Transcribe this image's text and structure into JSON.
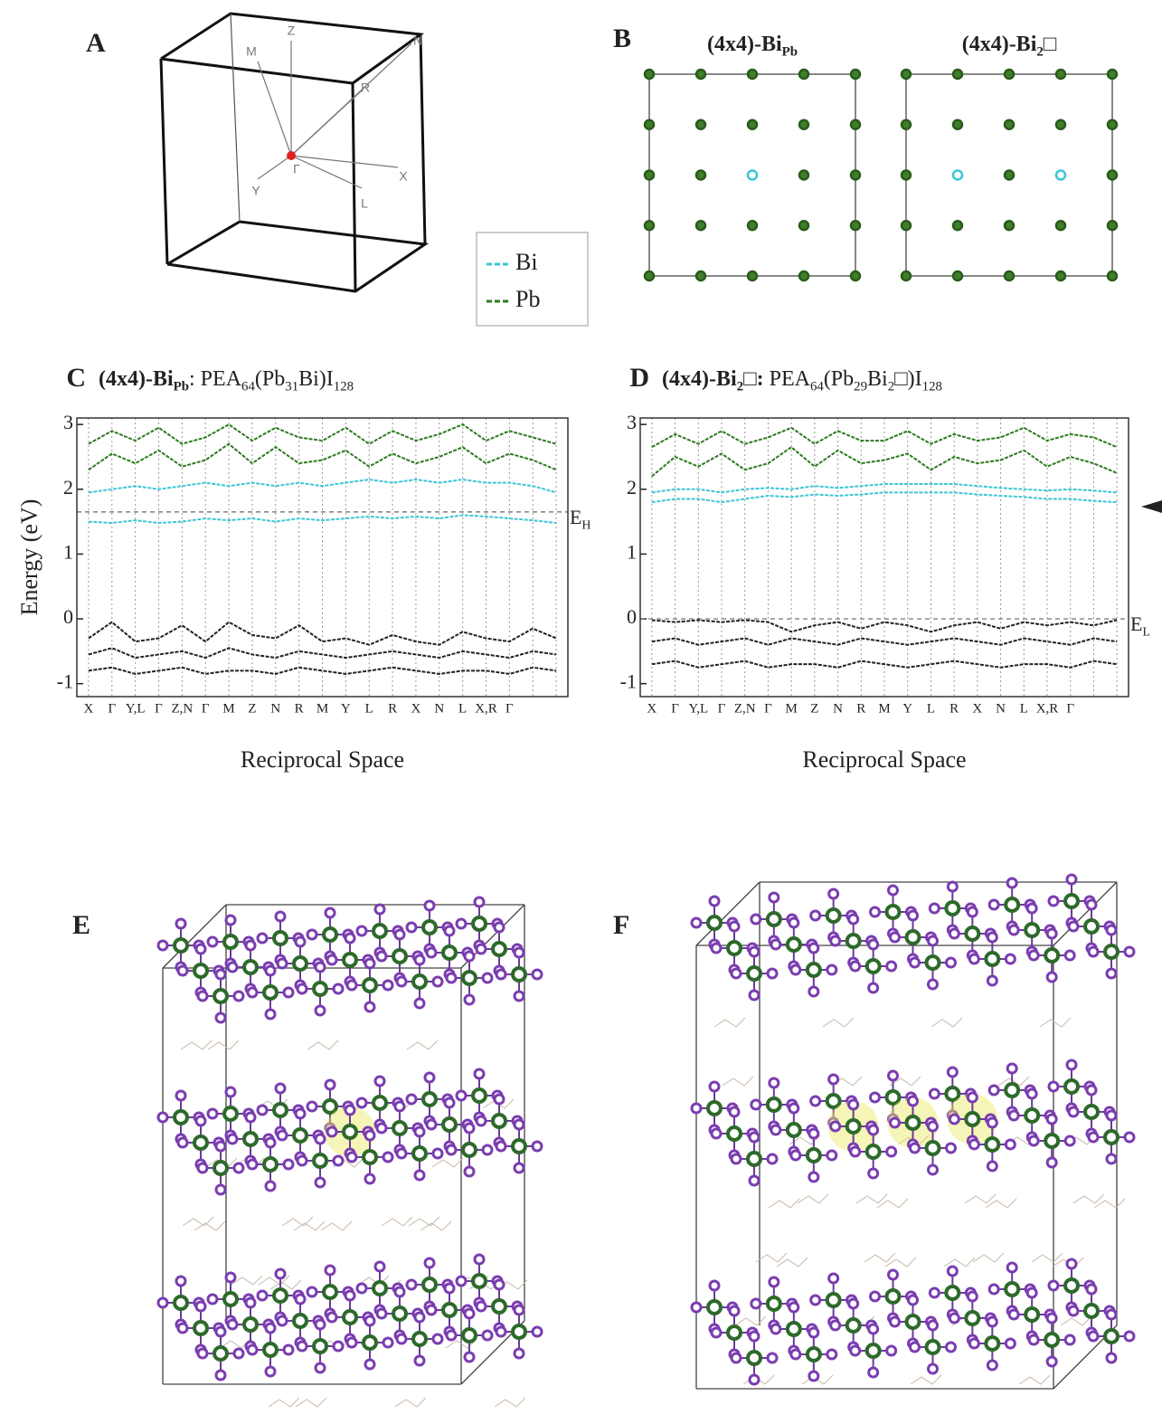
{
  "panel_a": {
    "label": "A",
    "points": [
      "M",
      "Z",
      "N",
      "R",
      "Γ",
      "X",
      "Y",
      "L"
    ]
  },
  "panel_b": {
    "label": "B",
    "titles": [
      [
        {
          "text": "(4x4)-Bi"
        },
        {
          "text": "Pb",
          "sub": true
        }
      ],
      [
        {
          "text": "(4x4)-Bi"
        },
        {
          "text": "2",
          "sub": true
        },
        {
          "text": "□"
        }
      ]
    ]
  },
  "legend": {
    "items": [
      {
        "text": "Bi",
        "color": "#3cc6d6"
      },
      {
        "text": "Pb",
        "color": "#2d7a1f"
      }
    ]
  },
  "chart_data": [
    {
      "type": "line",
      "panel": "C",
      "title": [
        {
          "text": "(4x4)-Bi",
          "bold": true
        },
        {
          "text": "Pb",
          "sub": true,
          "bold": true
        },
        {
          "text": ": PEA"
        },
        {
          "text": "64",
          "sub": true
        },
        {
          "text": "(Pb"
        },
        {
          "text": "31",
          "sub": true
        },
        {
          "text": "Bi)I"
        },
        {
          "text": "128",
          "sub": true
        }
      ],
      "ylabel": "Energy (eV)",
      "xlabel": "Reciprocal Space",
      "categories": [
        "X",
        "Γ",
        "Y,L",
        "Γ",
        "Z,N",
        "Γ",
        "M",
        "Z",
        "N",
        "R",
        "M",
        "Y",
        "L",
        "R",
        "X",
        "N",
        "L",
        "X,R",
        "Γ",
        "",
        ""
      ],
      "ylim": [
        -1.2,
        3.1
      ],
      "yticks": [
        -1,
        0,
        1,
        2,
        3
      ],
      "grid": true,
      "reference_line": 1.65,
      "annotation": [
        {
          "text": "E"
        },
        {
          "text": "H",
          "sub": true
        }
      ],
      "series": [
        {
          "color": "#3cc6d6",
          "values": [
            1.5,
            1.48,
            1.52,
            1.48,
            1.5,
            1.55,
            1.52,
            1.55,
            1.5,
            1.55,
            1.52,
            1.55,
            1.58,
            1.55,
            1.58,
            1.55,
            1.6,
            1.58,
            1.55,
            1.52,
            1.48
          ]
        },
        {
          "color": "#3cc6d6",
          "values": [
            1.95,
            2.0,
            2.05,
            2.0,
            2.05,
            2.1,
            2.05,
            2.1,
            2.05,
            2.1,
            2.05,
            2.1,
            2.15,
            2.1,
            2.15,
            2.1,
            2.15,
            2.1,
            2.1,
            2.05,
            1.95
          ]
        },
        {
          "color": "#2d7a1f",
          "values": [
            2.3,
            2.55,
            2.4,
            2.6,
            2.35,
            2.45,
            2.7,
            2.4,
            2.65,
            2.4,
            2.45,
            2.6,
            2.35,
            2.55,
            2.4,
            2.5,
            2.65,
            2.4,
            2.55,
            2.45,
            2.3
          ]
        },
        {
          "color": "#2d7a1f",
          "values": [
            2.7,
            2.9,
            2.75,
            2.95,
            2.7,
            2.8,
            3.0,
            2.75,
            2.95,
            2.8,
            2.75,
            2.95,
            2.7,
            2.9,
            2.75,
            2.85,
            3.0,
            2.75,
            2.9,
            2.8,
            2.7
          ]
        },
        {
          "color": "#222222",
          "values": [
            -0.3,
            -0.05,
            -0.35,
            -0.3,
            -0.1,
            -0.35,
            -0.05,
            -0.25,
            -0.3,
            -0.1,
            -0.35,
            -0.3,
            -0.4,
            -0.25,
            -0.35,
            -0.4,
            -0.2,
            -0.3,
            -0.35,
            -0.15,
            -0.3
          ]
        },
        {
          "color": "#222222",
          "values": [
            -0.55,
            -0.45,
            -0.6,
            -0.55,
            -0.5,
            -0.6,
            -0.45,
            -0.55,
            -0.6,
            -0.5,
            -0.55,
            -0.6,
            -0.55,
            -0.5,
            -0.55,
            -0.6,
            -0.5,
            -0.55,
            -0.6,
            -0.5,
            -0.55
          ]
        },
        {
          "color": "#222222",
          "values": [
            -0.8,
            -0.75,
            -0.85,
            -0.8,
            -0.75,
            -0.85,
            -0.8,
            -0.8,
            -0.85,
            -0.75,
            -0.8,
            -0.85,
            -0.8,
            -0.75,
            -0.8,
            -0.85,
            -0.8,
            -0.8,
            -0.85,
            -0.75,
            -0.8
          ]
        }
      ]
    },
    {
      "type": "line",
      "panel": "D",
      "title": [
        {
          "text": "(4x4)-Bi",
          "bold": true
        },
        {
          "text": "2",
          "sub": true,
          "bold": true
        },
        {
          "text": "□:",
          "bold": true
        },
        {
          "text": " PEA"
        },
        {
          "text": "64",
          "sub": true
        },
        {
          "text": "(Pb"
        },
        {
          "text": "29",
          "sub": true
        },
        {
          "text": "Bi"
        },
        {
          "text": "2",
          "sub": true
        },
        {
          "text": "□)I"
        },
        {
          "text": "128",
          "sub": true
        }
      ],
      "xlabel": "Reciprocal Space",
      "categories": [
        "X",
        "Γ",
        "Y,L",
        "Γ",
        "Z,N",
        "Γ",
        "M",
        "Z",
        "N",
        "R",
        "M",
        "Y",
        "L",
        "R",
        "X",
        "N",
        "L",
        "X,R",
        "Γ",
        "",
        ""
      ],
      "ylim": [
        -1.2,
        3.1
      ],
      "yticks": [
        -1,
        0,
        1,
        2,
        3
      ],
      "grid": true,
      "reference_line": 0,
      "annotation": [
        {
          "text": "E"
        },
        {
          "text": "L",
          "sub": true
        }
      ],
      "series": [
        {
          "color": "#3cc6d6",
          "values": [
            1.8,
            1.85,
            1.85,
            1.8,
            1.85,
            1.9,
            1.88,
            1.92,
            1.9,
            1.92,
            1.95,
            1.95,
            1.95,
            1.95,
            1.92,
            1.9,
            1.88,
            1.85,
            1.85,
            1.82,
            1.8
          ]
        },
        {
          "color": "#3cc6d6",
          "values": [
            1.95,
            2.0,
            2.0,
            1.95,
            2.0,
            2.02,
            2.0,
            2.05,
            2.02,
            2.05,
            2.08,
            2.08,
            2.08,
            2.08,
            2.05,
            2.02,
            2.0,
            1.98,
            2.0,
            1.98,
            1.95
          ]
        },
        {
          "color": "#2d7a1f",
          "values": [
            2.2,
            2.5,
            2.35,
            2.55,
            2.3,
            2.4,
            2.65,
            2.35,
            2.6,
            2.4,
            2.45,
            2.55,
            2.3,
            2.5,
            2.4,
            2.45,
            2.6,
            2.35,
            2.5,
            2.4,
            2.25
          ]
        },
        {
          "color": "#2d7a1f",
          "values": [
            2.65,
            2.85,
            2.7,
            2.9,
            2.7,
            2.8,
            2.95,
            2.7,
            2.9,
            2.75,
            2.75,
            2.9,
            2.7,
            2.85,
            2.75,
            2.8,
            2.95,
            2.75,
            2.85,
            2.8,
            2.65
          ]
        },
        {
          "color": "#222222",
          "values": [
            -0.02,
            -0.05,
            -0.02,
            -0.05,
            -0.02,
            -0.05,
            -0.2,
            -0.1,
            -0.05,
            -0.15,
            -0.05,
            -0.1,
            -0.2,
            -0.1,
            -0.05,
            -0.15,
            -0.05,
            -0.1,
            -0.05,
            -0.1,
            -0.02
          ]
        },
        {
          "color": "#222222",
          "values": [
            -0.35,
            -0.3,
            -0.4,
            -0.35,
            -0.3,
            -0.4,
            -0.3,
            -0.35,
            -0.4,
            -0.3,
            -0.35,
            -0.4,
            -0.35,
            -0.3,
            -0.35,
            -0.4,
            -0.3,
            -0.35,
            -0.4,
            -0.3,
            -0.35
          ]
        },
        {
          "color": "#222222",
          "values": [
            -0.7,
            -0.65,
            -0.75,
            -0.7,
            -0.65,
            -0.75,
            -0.7,
            -0.7,
            -0.75,
            -0.65,
            -0.7,
            -0.75,
            -0.7,
            -0.65,
            -0.7,
            -0.75,
            -0.7,
            -0.7,
            -0.75,
            -0.65,
            -0.7
          ]
        }
      ]
    }
  ],
  "panel_e": {
    "label": "E"
  },
  "panel_f": {
    "label": "F"
  }
}
